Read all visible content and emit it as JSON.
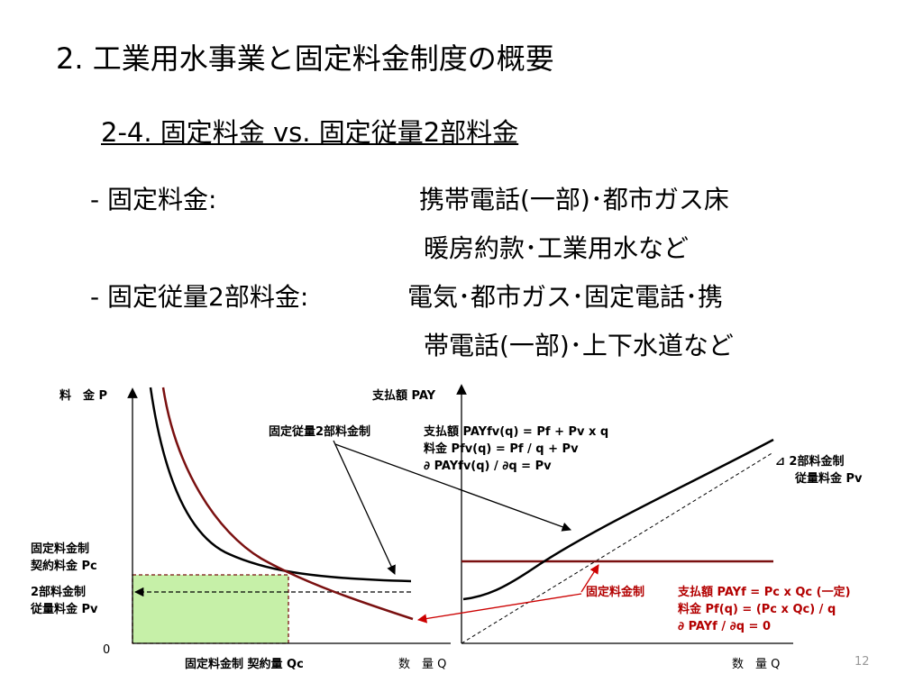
{
  "title": "2. 工業用水事業と固定料金制度の概要",
  "subtitle": "2-4. 固定料金 vs. 固定従量2部料金",
  "bullets": [
    {
      "label": "-  固定料金:",
      "desc1": "携帯電話(一部)･都市ガス床",
      "desc2": "暖房約款･工業用水など"
    },
    {
      "label": "-  固定従量2部料金:",
      "desc1": "電気･都市ガス･固定電話･携",
      "desc2": "帯電話(一部)･上下水道など"
    }
  ],
  "left_chart": {
    "y_axis_label": "料　金  P",
    "x_axis_label": "数　量  Q",
    "origin": "0",
    "pc_label": [
      "固定料金制",
      "契約料金 Pc"
    ],
    "pv_label": [
      "2部料金制",
      "従量料金 Pv"
    ],
    "qc_label": "固定料金制 契約量 Qc"
  },
  "right_chart": {
    "y_axis_label": "支払額  PAY",
    "x_axis_label": "数　量  Q",
    "slope_label": [
      "⊿   2部料金制",
      "従量料金 Pv"
    ]
  },
  "annotations": {
    "two_part": {
      "name": "固定従量2部料金制",
      "lines": [
        "支払額  PAYfv(q) = Pf  +  Pv x q",
        "料金     Pfv(q)     =  Pf / q  +  Pv",
        "∂ PAYfv(q) / ∂q    = Pv"
      ]
    },
    "fixed": {
      "name": "固定料金制",
      "lines": [
        "支払額  PAYf  =  Pc x Qc   (一定)",
        "料金     Pf(q)  = (Pc x Qc) / q",
        "∂ PAYf / ∂q      = 0"
      ]
    }
  },
  "page_number": "12",
  "colors": {
    "dark_red": "#7a1010",
    "bright_red": "#cc0000",
    "fill_green": "#c6f0a8"
  }
}
